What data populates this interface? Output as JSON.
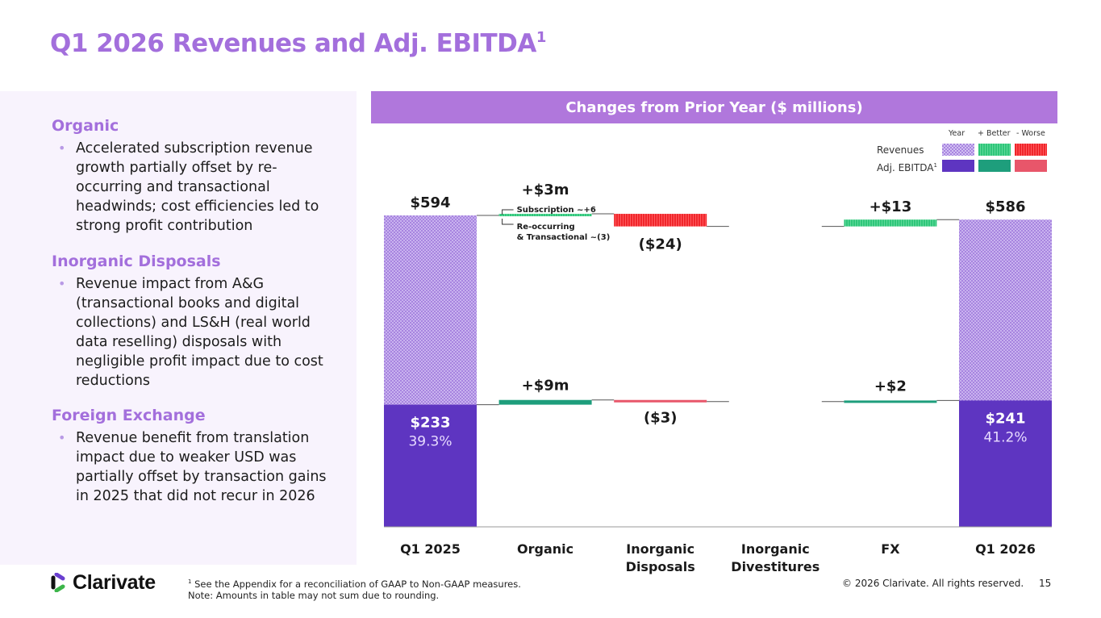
{
  "title": {
    "text": "Q1 2026 Revenues and Adj. EBITDA",
    "superscript": "1"
  },
  "left_panel": {
    "sections": [
      {
        "heading": "Organic",
        "bullets": [
          "Accelerated subscription revenue growth partially offset by re-occurring and transactional headwinds; cost efficiencies led to strong profit contribution"
        ]
      },
      {
        "heading": "Inorganic Disposals",
        "bullets": [
          "Revenue impact from A&G (transactional books and digital collections) and LS&H (real world data reselling) disposals with negligible profit impact due to cost reductions"
        ]
      },
      {
        "heading": "Foreign Exchange",
        "bullets": [
          "Revenue benefit from translation impact due to weaker USD was partially offset by transaction gains in 2025 that did not recur in 2026"
        ]
      }
    ]
  },
  "chart_header": "Changes from Prior Year ($ millions)",
  "legend": {
    "columns": [
      "Year",
      "+ Better",
      "- Worse"
    ],
    "rows": [
      {
        "label": "Revenues",
        "superscript": ""
      },
      {
        "label": "Adj. EBITDA",
        "superscript": "1"
      }
    ],
    "colors": {
      "revenue_year": "#b99ae6",
      "revenue_better": "#2fc67a",
      "revenue_worse": "#f0262b",
      "ebitda_year": "#5e35c1",
      "ebitda_better": "#1e9e7c",
      "ebitda_worse": "#e8566a"
    }
  },
  "chart_data": {
    "type": "waterfall",
    "title": "Changes from Prior Year ($ millions)",
    "categories": [
      "Q1 2025",
      "Organic",
      "Inorganic Disposals",
      "Inorganic Divestitures",
      "FX",
      "Q1 2026"
    ],
    "category_lines": [
      [
        "Q1 2025"
      ],
      [
        "Organic"
      ],
      [
        "Inorganic",
        "Disposals"
      ],
      [
        "Inorganic",
        "Divestitures"
      ],
      [
        "FX"
      ],
      [
        "Q1 2026"
      ]
    ],
    "series": [
      {
        "name": "Revenues",
        "values": [
          594,
          3,
          -24,
          0,
          13,
          586
        ],
        "kinds": [
          "total",
          "delta",
          "delta",
          "delta",
          "delta",
          "total"
        ],
        "labels": [
          "$594",
          "+$3m",
          "($24)",
          "",
          "+$13",
          "$586"
        ]
      },
      {
        "name": "Adj. EBITDA",
        "values": [
          233,
          9,
          -3,
          0,
          2,
          241
        ],
        "kinds": [
          "total",
          "delta",
          "delta",
          "delta",
          "delta",
          "total"
        ],
        "labels": [
          "$233",
          "+$9m",
          "($3)",
          "",
          "+$2",
          "$241"
        ],
        "margins": [
          "39.3%",
          "",
          "",
          "",
          "",
          "41.2%"
        ]
      }
    ],
    "annotations": [
      {
        "category": "Organic",
        "series": "Revenues",
        "text": "Subscription  ~+6"
      },
      {
        "category": "Organic",
        "series": "Revenues",
        "text_lines": [
          "Re-occurring",
          "& Transactional  ~(3)"
        ]
      }
    ],
    "ylim": [
      0,
      600
    ],
    "grid": false,
    "legend_position": "top-right"
  },
  "footer": {
    "logo_text": "Clarivate",
    "footnote_sup": "1",
    "footnote_line1": " See the Appendix for a reconciliation of GAAP to Non-GAAP measures.",
    "footnote_line2": "Note: Amounts in table may not sum due to rounding.",
    "copyright": "© 2026 Clarivate. All rights reserved.",
    "page_number": "15"
  }
}
